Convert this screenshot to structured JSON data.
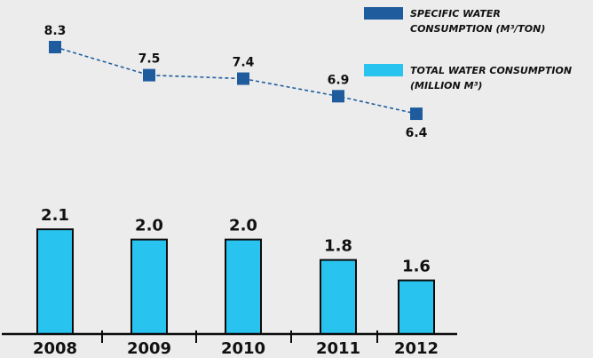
{
  "chart_data": {
    "type": "bar",
    "categories": [
      "2008",
      "2009",
      "2010",
      "2011",
      "2012"
    ],
    "series": [
      {
        "name": "TOTAL WATER CONSUMPTION (MILLION M³)",
        "type": "bar",
        "values": [
          2.1,
          2.0,
          2.0,
          1.8,
          1.6
        ],
        "labels": [
          "2.1",
          "2.0",
          "2.0",
          "1.8",
          "1.6"
        ],
        "color": "#29c3ef"
      },
      {
        "name": "SPECIFIC WATER CONSUMPTION (M³/TON)",
        "type": "line",
        "values": [
          8.3,
          7.5,
          7.4,
          6.9,
          6.4
        ],
        "labels": [
          "8.3",
          "7.5",
          "7.4",
          "6.9",
          "6.4"
        ],
        "color": "#1f5c9e"
      }
    ],
    "legend": {
      "placement": "top-right",
      "items": [
        {
          "line1": "SPECIFIC WATER",
          "line2": "CONSUMPTION (M³/TON)",
          "color": "#1f5c9e"
        },
        {
          "line1": "TOTAL WATER CONSUMPTION",
          "line2": "(MILLION M³)",
          "color": "#29c3ef"
        }
      ]
    }
  }
}
